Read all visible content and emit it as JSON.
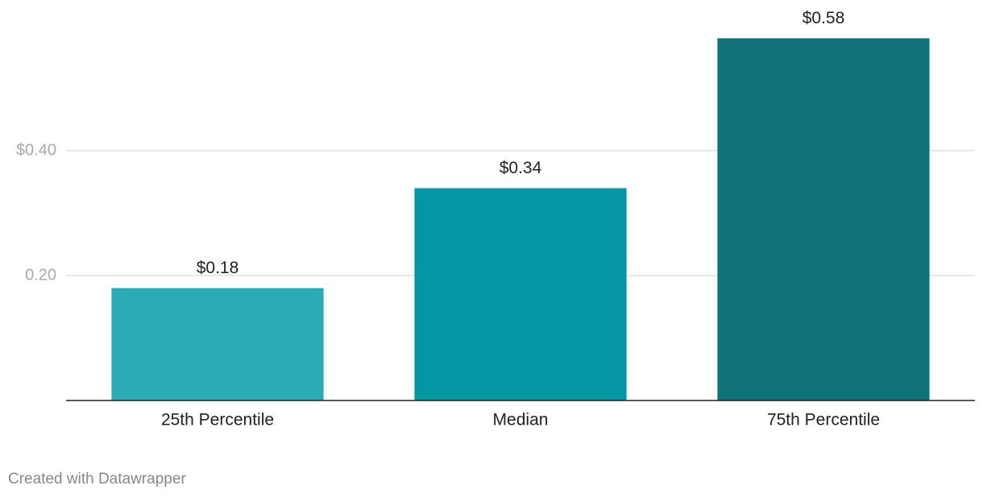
{
  "chart_data": {
    "type": "bar",
    "categories": [
      "25th Percentile",
      "Median",
      "75th Percentile"
    ],
    "values": [
      0.18,
      0.34,
      0.58
    ],
    "value_labels": [
      "$0.18",
      "$0.34",
      "$0.58"
    ],
    "colors": [
      "#2aabb5",
      "#0396a3",
      "#0f727b"
    ],
    "ylim": [
      0,
      0.6
    ],
    "yticks": [
      {
        "value": 0.2,
        "label": "0.20"
      },
      {
        "value": 0.4,
        "label": "$0.40"
      }
    ],
    "grid": true,
    "credit": "Created with Datawrapper"
  }
}
